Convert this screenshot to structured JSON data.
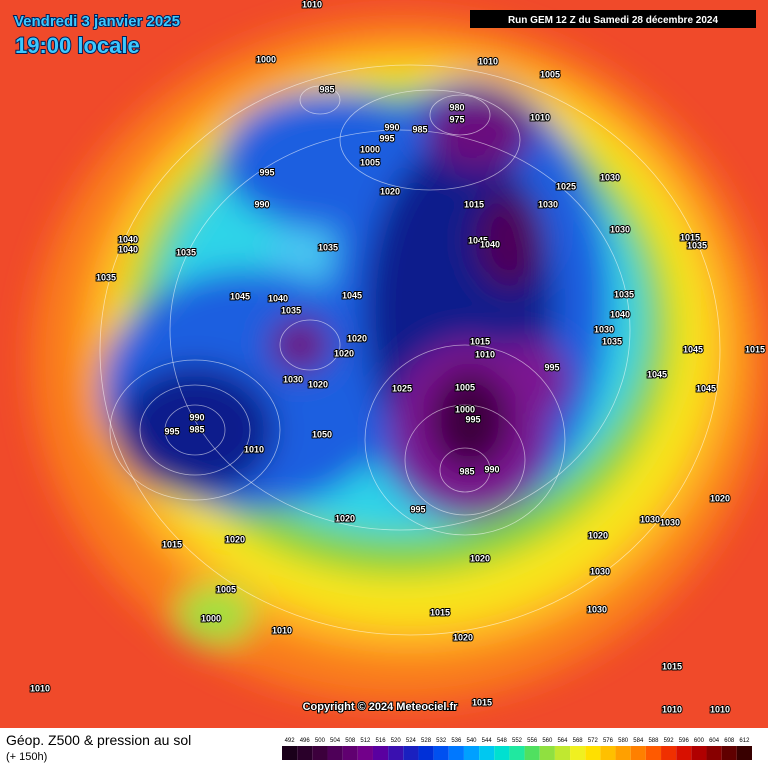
{
  "header": {
    "date": "Vendredi 3 janvier 2025",
    "time": "19:00 locale",
    "run": "Run GEM 12 Z du Samedi 28 décembre 2024"
  },
  "copyright": "Copyright © 2024 Meteociel.fr",
  "footer": {
    "title": "Géop. Z500 & pression au sol",
    "lead": "(+ 150h)"
  },
  "colorbar": {
    "ticks": [
      492,
      496,
      500,
      504,
      508,
      512,
      516,
      520,
      524,
      528,
      532,
      536,
      540,
      544,
      548,
      552,
      556,
      560,
      564,
      568,
      572,
      576,
      580,
      584,
      588,
      592,
      596,
      600,
      604,
      608,
      612
    ],
    "colors": [
      "#1a001a",
      "#2a002a",
      "#3c003c",
      "#4e0058",
      "#600070",
      "#72008a",
      "#5a00a0",
      "#3a10b0",
      "#1a20c0",
      "#0030d8",
      "#0050f0",
      "#0078ff",
      "#00a0ff",
      "#00c8f0",
      "#00e0d0",
      "#20e8a0",
      "#50e060",
      "#90e040",
      "#c0e830",
      "#f0f020",
      "#ffe000",
      "#ffc000",
      "#ffa000",
      "#ff8000",
      "#ff5a00",
      "#f03000",
      "#d81000",
      "#b00000",
      "#880000",
      "#600000",
      "#380000"
    ]
  },
  "isobar_labels": [
    "1010",
    "1000",
    "1010",
    "1005",
    "985",
    "980",
    "975",
    "1010",
    "990",
    "985",
    "995",
    "1000",
    "1005",
    "995",
    "1025",
    "1030",
    "990",
    "1020",
    "1015",
    "1030",
    "1030",
    "1040",
    "1040",
    "1035",
    "1035",
    "1045",
    "1040",
    "1015",
    "1035",
    "1035",
    "1045",
    "1040",
    "1045",
    "1035",
    "1035",
    "1040",
    "1030",
    "1035",
    "1020",
    "1020",
    "1015",
    "1010",
    "995",
    "1030",
    "1020",
    "1025",
    "1005",
    "990",
    "985",
    "995",
    "1000",
    "995",
    "1050",
    "1010",
    "985",
    "990",
    "995",
    "1020",
    "1030",
    "1030",
    "1020",
    "1020",
    "1015",
    "1020",
    "1020",
    "1030",
    "1005",
    "1030",
    "1000",
    "1015",
    "1010",
    "1020",
    "1015",
    "1010",
    "1015",
    "1010",
    "1010",
    "1015",
    "1045",
    "1045",
    "1045"
  ]
}
